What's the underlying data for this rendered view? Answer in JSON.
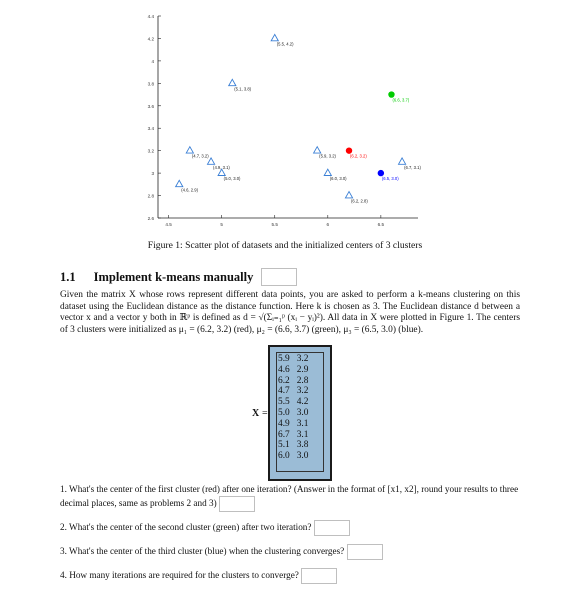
{
  "chart_data": {
    "type": "scatter",
    "title": "",
    "xlabel": "",
    "ylabel": "",
    "xlim": [
      4.4,
      6.85
    ],
    "ylim": [
      2.6,
      4.4
    ],
    "xticks": [
      "4.5",
      "5",
      "5.5",
      "6",
      "6.5"
    ],
    "yticks": [
      "2.6",
      "2.8",
      "3",
      "3.2",
      "3.4",
      "3.6",
      "3.8",
      "4",
      "4.2",
      "4.4"
    ],
    "points": [
      {
        "x": 5.9,
        "y": 3.2,
        "label": "(5.9, 3.2)"
      },
      {
        "x": 4.6,
        "y": 2.9,
        "label": "(4.6, 2.9)"
      },
      {
        "x": 6.2,
        "y": 2.8,
        "label": "(6.2, 2.8)"
      },
      {
        "x": 4.7,
        "y": 3.2,
        "label": "(4.7, 3.2)"
      },
      {
        "x": 5.5,
        "y": 4.2,
        "label": "(5.5, 4.2)"
      },
      {
        "x": 5.0,
        "y": 3.0,
        "label": "(5.0, 3.0)"
      },
      {
        "x": 4.9,
        "y": 3.1,
        "label": "(4.9, 3.1)"
      },
      {
        "x": 6.7,
        "y": 3.1,
        "label": "(6.7, 3.1)"
      },
      {
        "x": 5.1,
        "y": 3.8,
        "label": "(5.1, 3.8)"
      },
      {
        "x": 6.0,
        "y": 3.0,
        "label": "(6.0, 3.0)"
      }
    ],
    "centers": [
      {
        "x": 6.2,
        "y": 3.2,
        "label": "(6.2, 3.2)",
        "color": "#ff0000"
      },
      {
        "x": 6.6,
        "y": 3.7,
        "label": "(6.6, 3.7)",
        "color": "#00cc00"
      },
      {
        "x": 6.5,
        "y": 3.0,
        "label": "(6.5, 3.0)",
        "color": "#0000ff"
      }
    ],
    "marker_color": "#3a7fd5"
  },
  "caption": "Figure 1: Scatter plot of datasets and the initialized centers of 3 clusters",
  "section": {
    "number": "1.1",
    "title": "Implement k-means manually"
  },
  "paragraph": "Given the matrix X whose rows represent different data points, you are asked to perform a k-means clustering on this dataset using the Euclidean distance as the distance function. Here k is chosen as 3. The Euclidean distance d between a vector x and a vector y both in ℝᵖ is defined as d = √(Σᵢ₌₁ᵖ (xᵢ − yᵢ)²). All data in X were plotted in Figure 1. The centers of 3 clusters were initialized as μ₁ = (6.2, 3.2) (red), μ₂ = (6.6, 3.7) (green), μ₃ = (6.5, 3.0) (blue).",
  "matrix": {
    "label": "X",
    "equals": "=",
    "rows": [
      [
        "5.9",
        "3.2"
      ],
      [
        "4.6",
        "2.9"
      ],
      [
        "6.2",
        "2.8"
      ],
      [
        "4.7",
        "3.2"
      ],
      [
        "5.5",
        "4.2"
      ],
      [
        "5.0",
        "3.0"
      ],
      [
        "4.9",
        "3.1"
      ],
      [
        "6.7",
        "3.1"
      ],
      [
        "5.1",
        "3.8"
      ],
      [
        "6.0",
        "3.0"
      ]
    ]
  },
  "questions": [
    "1. What's the center of the first cluster (red) after one iteration? (Answer in the format of [x1, x2], round your results to three decimal places, same as problems 2 and 3)",
    "2. What's the center of the second cluster (green) after two iteration?",
    "3. What's the center of the third cluster (blue) when the clustering converges?",
    "4. How many iterations are required for the clusters to converge?"
  ]
}
